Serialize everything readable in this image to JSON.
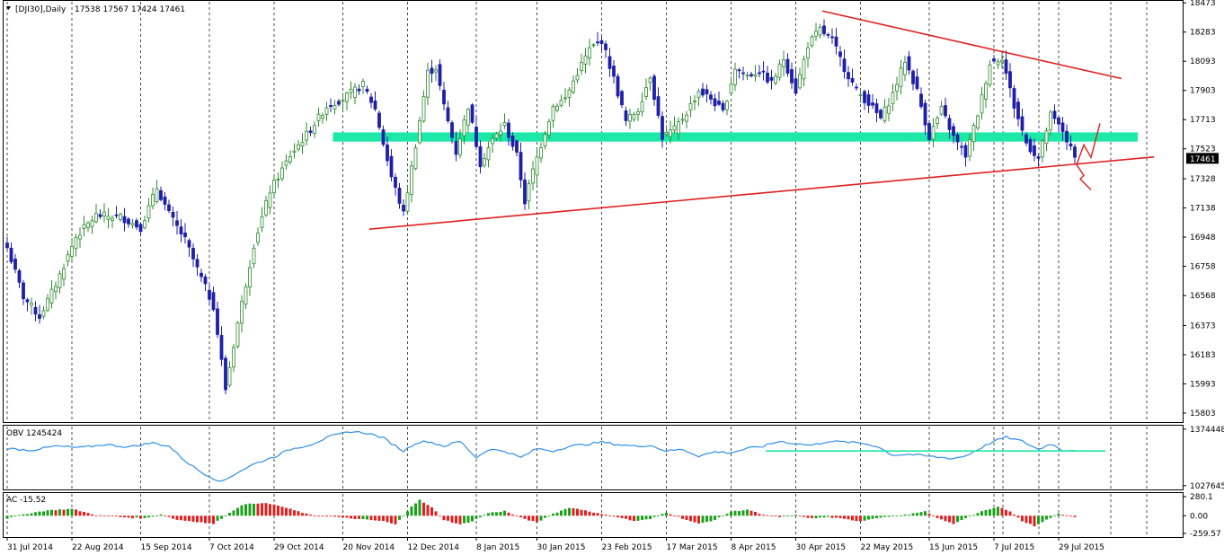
{
  "header": {
    "symbol_label": "[DJI30],Daily",
    "ohlc_label": "17538 17567 17424 17461"
  },
  "colors": {
    "bull": "#2e8b2e",
    "bear": "#1f1fa8",
    "trendline": "#e01f1f",
    "support_zone": "#1ee8a8",
    "obv_line": "#2f8fe8",
    "obv_support": "#1ee8a8",
    "ac_up": "#1aa01a",
    "ac_down": "#e01f1f",
    "grid": "#000000"
  },
  "chart_data": [
    {
      "type": "candlestick",
      "ylim": [
        15750,
        18480
      ],
      "y_ticks": [
        "18473",
        "18283",
        "18093",
        "17903",
        "17713",
        "17523",
        "17328",
        "17138",
        "16948",
        "16758",
        "16568",
        "16373",
        "16183",
        "15993",
        "15803"
      ],
      "x_labels": [
        "31 Jul 2014",
        "22 Aug 2014",
        "15 Sep 2014",
        "7 Oct 2014",
        "29 Oct 2014",
        "20 Nov 2014",
        "12 Dec 2014",
        "8 Jan 2015",
        "30 Jan 2015",
        "23 Feb 2015",
        "17 Mar 2015",
        "8 Apr 2015",
        "30 Apr 2015",
        "22 May 2015",
        "15 Jun 2015",
        "7 Jul 2015",
        "29 Jul 2015"
      ],
      "current_price": "17461",
      "anchors": [
        {
          "i": 0,
          "c": 16880
        },
        {
          "i": 4,
          "c": 16560
        },
        {
          "i": 8,
          "c": 16430
        },
        {
          "i": 12,
          "c": 16640
        },
        {
          "i": 17,
          "c": 16950
        },
        {
          "i": 22,
          "c": 17090
        },
        {
          "i": 28,
          "c": 17080
        },
        {
          "i": 33,
          "c": 17010
        },
        {
          "i": 37,
          "c": 17270
        },
        {
          "i": 40,
          "c": 17100
        },
        {
          "i": 44,
          "c": 16930
        },
        {
          "i": 47,
          "c": 16740
        },
        {
          "i": 51,
          "c": 16500
        },
        {
          "i": 54,
          "c": 15960
        },
        {
          "i": 57,
          "c": 16390
        },
        {
          "i": 61,
          "c": 16900
        },
        {
          "i": 65,
          "c": 17250
        },
        {
          "i": 70,
          "c": 17480
        },
        {
          "i": 75,
          "c": 17650
        },
        {
          "i": 79,
          "c": 17800
        },
        {
          "i": 83,
          "c": 17850
        },
        {
          "i": 88,
          "c": 17940
        },
        {
          "i": 91,
          "c": 17780
        },
        {
          "i": 95,
          "c": 17340
        },
        {
          "i": 98,
          "c": 17100
        },
        {
          "i": 101,
          "c": 17550
        },
        {
          "i": 104,
          "c": 18020
        },
        {
          "i": 106,
          "c": 18050
        },
        {
          "i": 108,
          "c": 17800
        },
        {
          "i": 111,
          "c": 17500
        },
        {
          "i": 114,
          "c": 17800
        },
        {
          "i": 117,
          "c": 17430
        },
        {
          "i": 120,
          "c": 17580
        },
        {
          "i": 123,
          "c": 17680
        },
        {
          "i": 126,
          "c": 17480
        },
        {
          "i": 128,
          "c": 17180
        },
        {
          "i": 130,
          "c": 17380
        },
        {
          "i": 132,
          "c": 17550
        },
        {
          "i": 135,
          "c": 17800
        },
        {
          "i": 138,
          "c": 17850
        },
        {
          "i": 141,
          "c": 18020
        },
        {
          "i": 144,
          "c": 18170
        },
        {
          "i": 147,
          "c": 18230
        },
        {
          "i": 150,
          "c": 17980
        },
        {
          "i": 153,
          "c": 17700
        },
        {
          "i": 156,
          "c": 17780
        },
        {
          "i": 159,
          "c": 18000
        },
        {
          "i": 162,
          "c": 17600
        },
        {
          "i": 165,
          "c": 17650
        },
        {
          "i": 168,
          "c": 17760
        },
        {
          "i": 171,
          "c": 17900
        },
        {
          "i": 174,
          "c": 17850
        },
        {
          "i": 177,
          "c": 17760
        },
        {
          "i": 180,
          "c": 18050
        },
        {
          "i": 183,
          "c": 18000
        },
        {
          "i": 186,
          "c": 18030
        },
        {
          "i": 189,
          "c": 17950
        },
        {
          "i": 192,
          "c": 18110
        },
        {
          "i": 195,
          "c": 17900
        },
        {
          "i": 198,
          "c": 18200
        },
        {
          "i": 201,
          "c": 18300
        },
        {
          "i": 204,
          "c": 18230
        },
        {
          "i": 207,
          "c": 18050
        },
        {
          "i": 210,
          "c": 17900
        },
        {
          "i": 213,
          "c": 17820
        },
        {
          "i": 216,
          "c": 17720
        },
        {
          "i": 219,
          "c": 17880
        },
        {
          "i": 222,
          "c": 18100
        },
        {
          "i": 225,
          "c": 17900
        },
        {
          "i": 228,
          "c": 17600
        },
        {
          "i": 231,
          "c": 17780
        },
        {
          "i": 234,
          "c": 17600
        },
        {
          "i": 237,
          "c": 17480
        },
        {
          "i": 240,
          "c": 17750
        },
        {
          "i": 243,
          "c": 18080
        },
        {
          "i": 246,
          "c": 18120
        },
        {
          "i": 249,
          "c": 17800
        },
        {
          "i": 252,
          "c": 17560
        },
        {
          "i": 255,
          "c": 17460
        },
        {
          "i": 258,
          "c": 17740
        },
        {
          "i": 261,
          "c": 17640
        },
        {
          "i": 264,
          "c": 17461
        }
      ],
      "resistance_line": {
        "from": {
          "i": 202,
          "price": 18420
        },
        "to": {
          "i": 276,
          "price": 17980
        }
      },
      "support_line": {
        "from": {
          "i": 90,
          "price": 17000
        },
        "to": {
          "i": 284,
          "price": 17470
        }
      },
      "support_zone": {
        "from_i": 81,
        "to_i": 280,
        "low": 17570,
        "high": 17630
      }
    },
    {
      "type": "line",
      "name": "OBV",
      "label": "OBV 1245424",
      "y_ticks": [
        "1374448",
        "1027645"
      ],
      "ylim": [
        1010000,
        1390000
      ],
      "support_level": {
        "from_i": 188,
        "to_i": 272,
        "value": 1240000
      },
      "anchors": [
        {
          "i": 0,
          "v": 1255000
        },
        {
          "i": 6,
          "v": 1245000
        },
        {
          "i": 12,
          "v": 1270000
        },
        {
          "i": 18,
          "v": 1260000
        },
        {
          "i": 24,
          "v": 1280000
        },
        {
          "i": 30,
          "v": 1265000
        },
        {
          "i": 36,
          "v": 1290000
        },
        {
          "i": 40,
          "v": 1270000
        },
        {
          "i": 44,
          "v": 1180000
        },
        {
          "i": 48,
          "v": 1110000
        },
        {
          "i": 53,
          "v": 1050000
        },
        {
          "i": 57,
          "v": 1110000
        },
        {
          "i": 61,
          "v": 1160000
        },
        {
          "i": 66,
          "v": 1205000
        },
        {
          "i": 70,
          "v": 1250000
        },
        {
          "i": 75,
          "v": 1280000
        },
        {
          "i": 80,
          "v": 1330000
        },
        {
          "i": 85,
          "v": 1360000
        },
        {
          "i": 89,
          "v": 1350000
        },
        {
          "i": 93,
          "v": 1320000
        },
        {
          "i": 98,
          "v": 1240000
        },
        {
          "i": 101,
          "v": 1290000
        },
        {
          "i": 104,
          "v": 1300000
        },
        {
          "i": 108,
          "v": 1270000
        },
        {
          "i": 112,
          "v": 1300000
        },
        {
          "i": 116,
          "v": 1200000
        },
        {
          "i": 119,
          "v": 1250000
        },
        {
          "i": 123,
          "v": 1240000
        },
        {
          "i": 127,
          "v": 1200000
        },
        {
          "i": 131,
          "v": 1255000
        },
        {
          "i": 135,
          "v": 1240000
        },
        {
          "i": 139,
          "v": 1270000
        },
        {
          "i": 143,
          "v": 1280000
        },
        {
          "i": 147,
          "v": 1295000
        },
        {
          "i": 151,
          "v": 1280000
        },
        {
          "i": 155,
          "v": 1270000
        },
        {
          "i": 159,
          "v": 1275000
        },
        {
          "i": 163,
          "v": 1240000
        },
        {
          "i": 167,
          "v": 1250000
        },
        {
          "i": 171,
          "v": 1210000
        },
        {
          "i": 175,
          "v": 1235000
        },
        {
          "i": 179,
          "v": 1230000
        },
        {
          "i": 183,
          "v": 1255000
        },
        {
          "i": 187,
          "v": 1270000
        },
        {
          "i": 191,
          "v": 1300000
        },
        {
          "i": 195,
          "v": 1285000
        },
        {
          "i": 199,
          "v": 1275000
        },
        {
          "i": 203,
          "v": 1300000
        },
        {
          "i": 207,
          "v": 1295000
        },
        {
          "i": 211,
          "v": 1290000
        },
        {
          "i": 215,
          "v": 1270000
        },
        {
          "i": 219,
          "v": 1215000
        },
        {
          "i": 223,
          "v": 1220000
        },
        {
          "i": 227,
          "v": 1210000
        },
        {
          "i": 231,
          "v": 1200000
        },
        {
          "i": 234,
          "v": 1195000
        },
        {
          "i": 237,
          "v": 1210000
        },
        {
          "i": 240,
          "v": 1250000
        },
        {
          "i": 244,
          "v": 1300000
        },
        {
          "i": 247,
          "v": 1325000
        },
        {
          "i": 251,
          "v": 1300000
        },
        {
          "i": 255,
          "v": 1250000
        },
        {
          "i": 258,
          "v": 1285000
        },
        {
          "i": 261,
          "v": 1245000
        },
        {
          "i": 264,
          "v": 1245424
        }
      ]
    },
    {
      "type": "bar",
      "name": "AC",
      "label": "AC -15.52",
      "y_ticks": [
        "280.1",
        "0.00",
        "-259.57"
      ],
      "ylim": [
        -300,
        320
      ],
      "zero_tick_value": 0,
      "anchors": [
        {
          "i": 0,
          "v": -40
        },
        {
          "i": 4,
          "v": 20
        },
        {
          "i": 10,
          "v": 80
        },
        {
          "i": 16,
          "v": 100
        },
        {
          "i": 22,
          "v": 10
        },
        {
          "i": 28,
          "v": -20
        },
        {
          "i": 34,
          "v": -40
        },
        {
          "i": 38,
          "v": 20
        },
        {
          "i": 42,
          "v": -60
        },
        {
          "i": 47,
          "v": -90
        },
        {
          "i": 51,
          "v": -120
        },
        {
          "i": 55,
          "v": 40
        },
        {
          "i": 58,
          "v": 160
        },
        {
          "i": 63,
          "v": 190
        },
        {
          "i": 67,
          "v": 150
        },
        {
          "i": 71,
          "v": 80
        },
        {
          "i": 75,
          "v": 10
        },
        {
          "i": 80,
          "v": -10
        },
        {
          "i": 85,
          "v": -40
        },
        {
          "i": 89,
          "v": -60
        },
        {
          "i": 93,
          "v": -80
        },
        {
          "i": 96,
          "v": -130
        },
        {
          "i": 100,
          "v": 140
        },
        {
          "i": 102,
          "v": 230
        },
        {
          "i": 105,
          "v": 120
        },
        {
          "i": 108,
          "v": -60
        },
        {
          "i": 112,
          "v": -130
        },
        {
          "i": 115,
          "v": -80
        },
        {
          "i": 119,
          "v": 40
        },
        {
          "i": 123,
          "v": 70
        },
        {
          "i": 127,
          "v": -30
        },
        {
          "i": 131,
          "v": -100
        },
        {
          "i": 135,
          "v": 30
        },
        {
          "i": 139,
          "v": 120
        },
        {
          "i": 143,
          "v": 80
        },
        {
          "i": 147,
          "v": 20
        },
        {
          "i": 151,
          "v": -20
        },
        {
          "i": 155,
          "v": -80
        },
        {
          "i": 159,
          "v": -50
        },
        {
          "i": 163,
          "v": 50
        },
        {
          "i": 167,
          "v": -40
        },
        {
          "i": 171,
          "v": -120
        },
        {
          "i": 175,
          "v": -60
        },
        {
          "i": 179,
          "v": 60
        },
        {
          "i": 183,
          "v": 90
        },
        {
          "i": 187,
          "v": 10
        },
        {
          "i": 191,
          "v": -20
        },
        {
          "i": 195,
          "v": 10
        },
        {
          "i": 199,
          "v": -40
        },
        {
          "i": 203,
          "v": -20
        },
        {
          "i": 207,
          "v": -50
        },
        {
          "i": 211,
          "v": -80
        },
        {
          "i": 215,
          "v": -30
        },
        {
          "i": 219,
          "v": -10
        },
        {
          "i": 223,
          "v": 20
        },
        {
          "i": 227,
          "v": 60
        },
        {
          "i": 231,
          "v": -60
        },
        {
          "i": 234,
          "v": -120
        },
        {
          "i": 237,
          "v": -30
        },
        {
          "i": 241,
          "v": 60
        },
        {
          "i": 245,
          "v": 130
        },
        {
          "i": 248,
          "v": 70
        },
        {
          "i": 251,
          "v": -80
        },
        {
          "i": 254,
          "v": -150
        },
        {
          "i": 257,
          "v": -60
        },
        {
          "i": 260,
          "v": 30
        },
        {
          "i": 264,
          "v": -15.52
        }
      ]
    }
  ]
}
